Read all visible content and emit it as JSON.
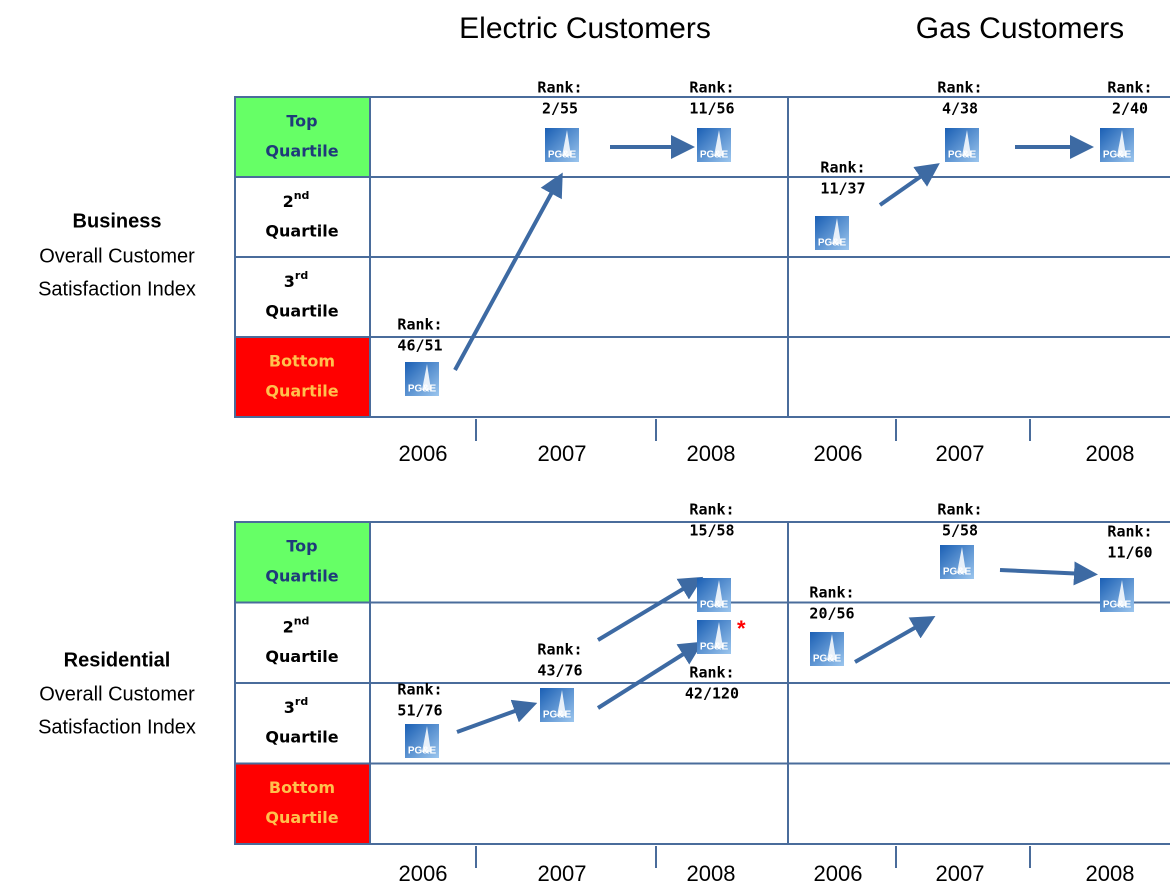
{
  "headers": [
    "Electric Customers",
    "Gas Customers"
  ],
  "logo_text": "PG&E",
  "panels": [
    {
      "title": "Business",
      "subtitle_lines": [
        "Overall Customer",
        "Satisfaction Index"
      ],
      "quartiles": [
        {
          "line1": "Top",
          "line2": "Quartile"
        },
        {
          "line1": "2",
          "sup": "nd",
          "line2": "Quartile"
        },
        {
          "line1": "3",
          "sup": "rd",
          "line2": "Quartile"
        },
        {
          "line1": "Bottom",
          "line2": "Quartile"
        }
      ],
      "years": [
        "2006",
        "2007",
        "2008",
        "2006",
        "2007",
        "2008"
      ],
      "ranks": [
        {
          "label": "Rank:",
          "value": "46/51"
        },
        {
          "label": "Rank:",
          "value": "2/55"
        },
        {
          "label": "Rank:",
          "value": "11/56"
        },
        {
          "label": "Rank:",
          "value": "11/37"
        },
        {
          "label": "Rank:",
          "value": "4/38"
        },
        {
          "label": "Rank:",
          "value": "2/40"
        }
      ]
    },
    {
      "title": "Residential",
      "subtitle_lines": [
        "Overall Customer",
        "Satisfaction Index"
      ],
      "quartiles": [
        {
          "line1": "Top",
          "line2": "Quartile"
        },
        {
          "line1": "2",
          "sup": "nd",
          "line2": "Quartile"
        },
        {
          "line1": "3",
          "sup": "rd",
          "line2": "Quartile"
        },
        {
          "line1": "Bottom",
          "line2": "Quartile"
        }
      ],
      "years": [
        "2006",
        "2007",
        "2008",
        "2006",
        "2007",
        "2008"
      ],
      "ranks": [
        {
          "label": "Rank:",
          "value": "51/76"
        },
        {
          "label": "Rank:",
          "value": "43/76"
        },
        {
          "label": "Rank:",
          "value": "15/58"
        },
        {
          "label": "Rank:",
          "value": "42/120",
          "note": "*"
        },
        {
          "label": "Rank:",
          "value": "20/56"
        },
        {
          "label": "Rank:",
          "value": "5/58"
        },
        {
          "label": "Rank:",
          "value": "11/60"
        }
      ]
    }
  ]
}
